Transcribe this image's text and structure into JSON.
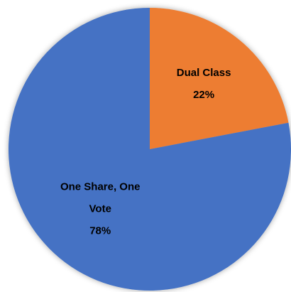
{
  "chart_data": {
    "type": "pie",
    "categories": [
      "Dual Class",
      "One Share, One Vote"
    ],
    "values": [
      22,
      78
    ],
    "value_labels": [
      "22%",
      "78%"
    ],
    "colors": [
      "#ed7d31",
      "#4472c4"
    ]
  }
}
